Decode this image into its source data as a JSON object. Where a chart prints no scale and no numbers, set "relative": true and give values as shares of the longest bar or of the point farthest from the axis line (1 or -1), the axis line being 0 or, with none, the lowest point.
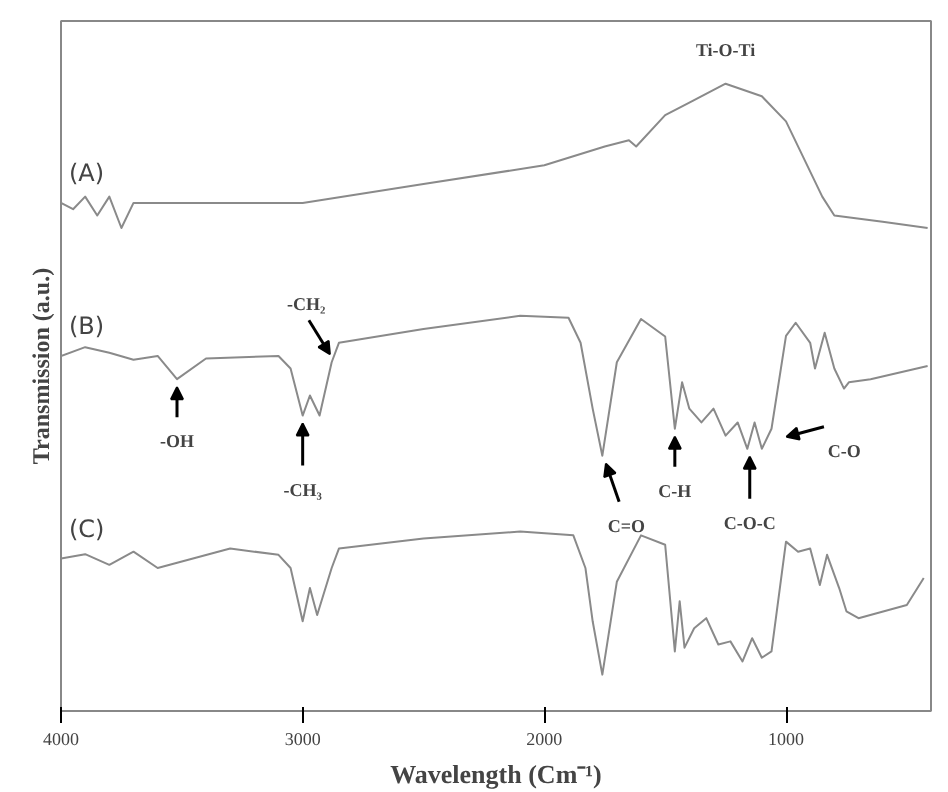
{
  "chart_data": {
    "type": "line",
    "relative": true,
    "xlabel": "Wavelength (Cm⁻¹)",
    "ylabel": "Transmission (a.u.)",
    "xlim": [
      4000,
      400
    ],
    "xticks": [
      4000,
      3000,
      2000,
      1000
    ],
    "grid": false,
    "legend": false,
    "marker": "none",
    "line_style": "solid",
    "series": [
      {
        "name": "(A)",
        "color": "#8a8a8a",
        "x": [
          4000,
          3950,
          3900,
          3850,
          3800,
          3750,
          3700,
          3600,
          3500,
          3000,
          2500,
          2000,
          1750,
          1650,
          1620,
          1500,
          1400,
          1250,
          1100,
          1000,
          850,
          800,
          600,
          414
        ],
        "values": [
          0.81,
          0.8,
          0.82,
          0.79,
          0.82,
          0.77,
          0.81,
          0.81,
          0.81,
          0.81,
          0.84,
          0.87,
          0.9,
          0.91,
          0.9,
          0.95,
          0.97,
          1.0,
          0.98,
          0.94,
          0.82,
          0.79,
          0.78,
          0.77
        ]
      },
      {
        "name": "(B)",
        "color": "#8a8a8a",
        "x": [
          4000,
          3900,
          3800,
          3700,
          3600,
          3520,
          3400,
          3100,
          3050,
          3000,
          2970,
          2930,
          2880,
          2850,
          2500,
          2100,
          1900,
          1850,
          1800,
          1760,
          1700,
          1600,
          1500,
          1460,
          1430,
          1400,
          1350,
          1300,
          1250,
          1200,
          1160,
          1130,
          1100,
          1060,
          1000,
          960,
          900,
          880,
          840,
          800,
          760,
          740,
          650,
          414
        ],
        "values": [
          0.566,
          0.58,
          0.571,
          0.56,
          0.566,
          0.529,
          0.562,
          0.566,
          0.546,
          0.471,
          0.503,
          0.471,
          0.556,
          0.587,
          0.609,
          0.63,
          0.627,
          0.587,
          0.482,
          0.407,
          0.556,
          0.625,
          0.597,
          0.45,
          0.524,
          0.482,
          0.46,
          0.482,
          0.439,
          0.46,
          0.418,
          0.46,
          0.418,
          0.45,
          0.598,
          0.619,
          0.587,
          0.546,
          0.603,
          0.546,
          0.514,
          0.524,
          0.529,
          0.55
        ]
      },
      {
        "name": "(C)",
        "color": "#8a8a8a",
        "x": [
          4000,
          3900,
          3800,
          3700,
          3600,
          3300,
          3100,
          3050,
          3000,
          2970,
          2940,
          2880,
          2850,
          2500,
          2100,
          1880,
          1830,
          1800,
          1760,
          1700,
          1600,
          1500,
          1460,
          1440,
          1420,
          1380,
          1330,
          1280,
          1230,
          1180,
          1140,
          1100,
          1060,
          1000,
          950,
          900,
          860,
          830,
          780,
          750,
          700,
          500,
          430
        ],
        "values": [
          0.243,
          0.25,
          0.233,
          0.254,
          0.228,
          0.259,
          0.249,
          0.228,
          0.143,
          0.196,
          0.153,
          0.228,
          0.259,
          0.275,
          0.286,
          0.28,
          0.228,
          0.143,
          0.058,
          0.206,
          0.28,
          0.265,
          0.095,
          0.175,
          0.101,
          0.132,
          0.148,
          0.106,
          0.111,
          0.079,
          0.116,
          0.085,
          0.095,
          0.27,
          0.254,
          0.259,
          0.201,
          0.249,
          0.196,
          0.159,
          0.148,
          0.169,
          0.212
        ]
      }
    ],
    "annotations": [
      {
        "text": "Ti-O-Ti",
        "x": 1250,
        "y": 1.0
      },
      {
        "text": "-OH",
        "x": 3520,
        "y": 0.529
      },
      {
        "text": "-CH₃",
        "x": 3000,
        "y": 0.471
      },
      {
        "text": "-CH₂",
        "x": 2870,
        "y": 0.556
      },
      {
        "text": "C=O",
        "x": 1760,
        "y": 0.407
      },
      {
        "text": "C-H",
        "x": 1460,
        "y": 0.45
      },
      {
        "text": "C-O-C",
        "x": 1150,
        "y": 0.418
      },
      {
        "text": "C-O",
        "x": 1040,
        "y": 0.45
      }
    ]
  }
}
